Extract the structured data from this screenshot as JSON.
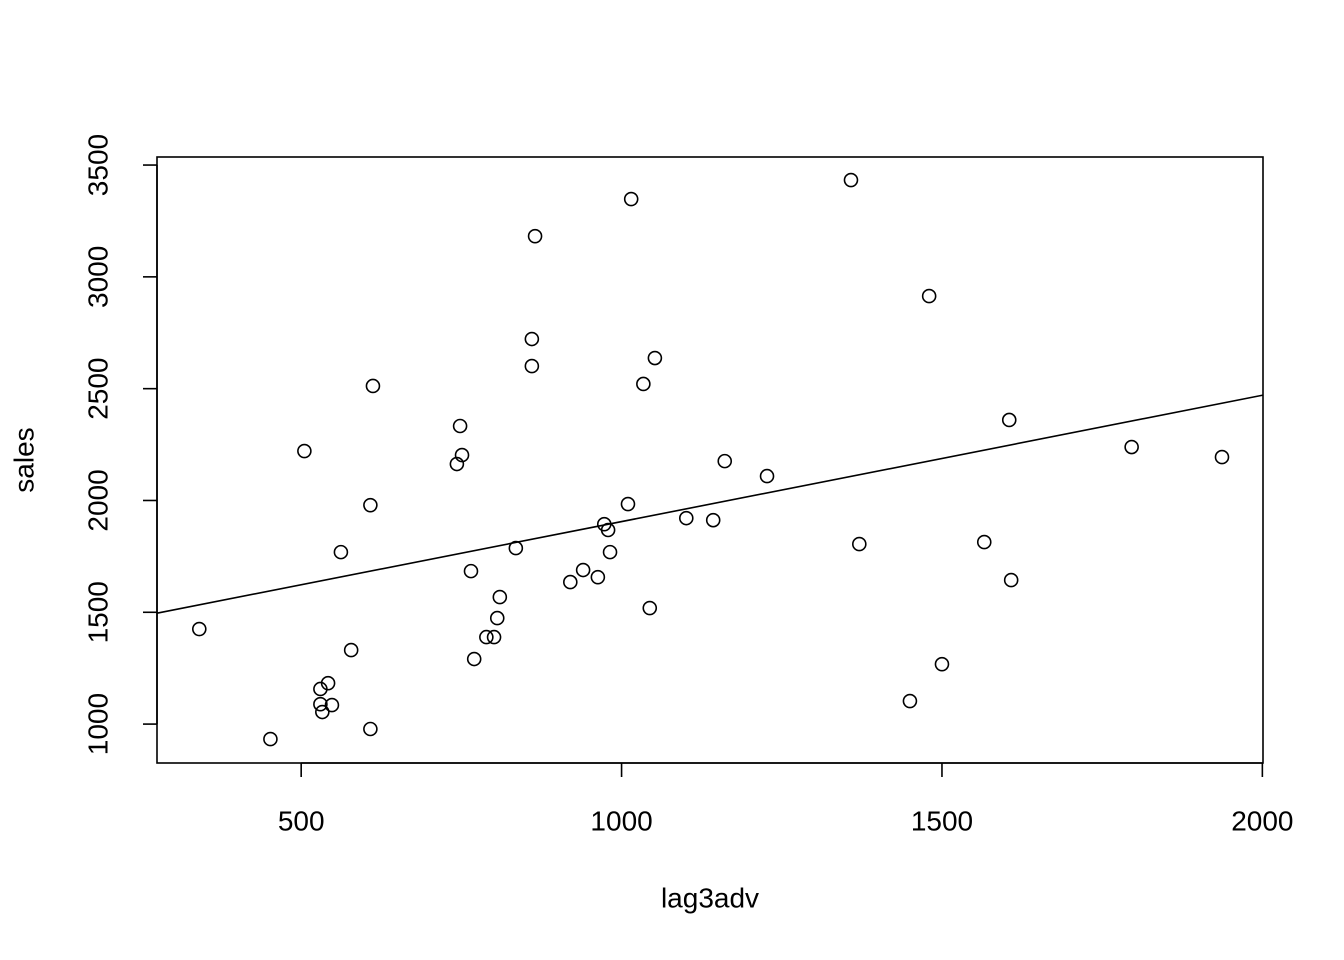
{
  "chart_data": {
    "type": "scatter",
    "x_label": "lag3adv",
    "y_label": "sales",
    "x": [
      341,
      452,
      505,
      530,
      530,
      533,
      542,
      548,
      562,
      578,
      608,
      608,
      612,
      743,
      748,
      751,
      765,
      770,
      789,
      801,
      806,
      810,
      835,
      860,
      860,
      865,
      920,
      940,
      963,
      973,
      979,
      982,
      1010,
      1015,
      1034,
      1044,
      1052,
      1101,
      1143,
      1161,
      1227,
      1358,
      1371,
      1450,
      1480,
      1500,
      1566,
      1605,
      1608,
      1796,
      1937
    ],
    "values": [
      1425,
      933,
      2221,
      1157,
      1089,
      1054,
      1183,
      1085,
      1769,
      1331,
      1979,
      978,
      2512,
      2163,
      2333,
      2203,
      1684,
      1291,
      1389,
      1389,
      1474,
      1568,
      1787,
      2601,
      2722,
      3182,
      1635,
      1689,
      1657,
      1894,
      1868,
      1769,
      1984,
      3348,
      2521,
      1519,
      2637,
      1921,
      1912,
      2176,
      2109,
      3433,
      1805,
      1103,
      2914,
      1268,
      1814,
      2360,
      1644,
      2239,
      2194
    ],
    "color": "#000000",
    "fit_line": {
      "x": [
        275,
        2001
      ],
      "values": [
        1496,
        2471
      ]
    },
    "xlim": [
      275,
      2001
    ],
    "ylim": [
      826,
      3536
    ],
    "xticks": [
      500,
      1000,
      1500,
      2000
    ],
    "yticks": [
      1000,
      1500,
      2000,
      2500,
      3000,
      3500
    ]
  }
}
